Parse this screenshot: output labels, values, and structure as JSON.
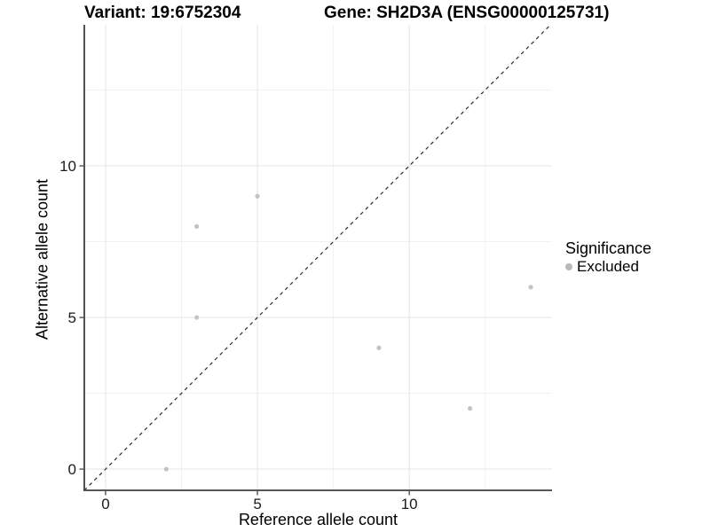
{
  "titles": {
    "variant": "Variant: 19:6752304",
    "gene": "Gene: SH2D3A (ENSG00000125731)"
  },
  "legend": {
    "title": "Significance",
    "items": [
      {
        "label": "Excluded",
        "color": "#b9b9b9"
      }
    ]
  },
  "chart_data": {
    "type": "scatter",
    "title_left": "Variant: 19:6752304",
    "title_right": "Gene: SH2D3A (ENSG00000125731)",
    "xlabel": "Reference allele count",
    "ylabel": "Alternative allele count",
    "xlim": [
      -0.7,
      14.7
    ],
    "ylim": [
      -0.7,
      14.65
    ],
    "x_major_ticks": [
      0,
      5,
      10
    ],
    "y_major_ticks": [
      0,
      5,
      10
    ],
    "x_minor_gridlines": [
      2.5,
      7.5,
      12.5
    ],
    "y_minor_gridlines": [
      2.5,
      7.5,
      12.5
    ],
    "grid": true,
    "legend_position": "right",
    "series": [
      {
        "name": "Excluded",
        "color": "#c3c3c3",
        "points": [
          {
            "x": 2,
            "y": 0
          },
          {
            "x": 3,
            "y": 5
          },
          {
            "x": 3,
            "y": 8
          },
          {
            "x": 5,
            "y": 9
          },
          {
            "x": 9,
            "y": 4
          },
          {
            "x": 12,
            "y": 2
          },
          {
            "x": 14,
            "y": 6
          }
        ]
      }
    ],
    "identity_line": {
      "slope": 1,
      "intercept": 0,
      "style": "dashed",
      "color": "#2b2b2b"
    },
    "colors": {
      "major_grid": "#e4e4e4",
      "minor_grid": "#f1f1f1",
      "axis_line": "#3f3f3f",
      "tick_mark": "#333333",
      "tick_label": "#1a1a1a"
    }
  }
}
